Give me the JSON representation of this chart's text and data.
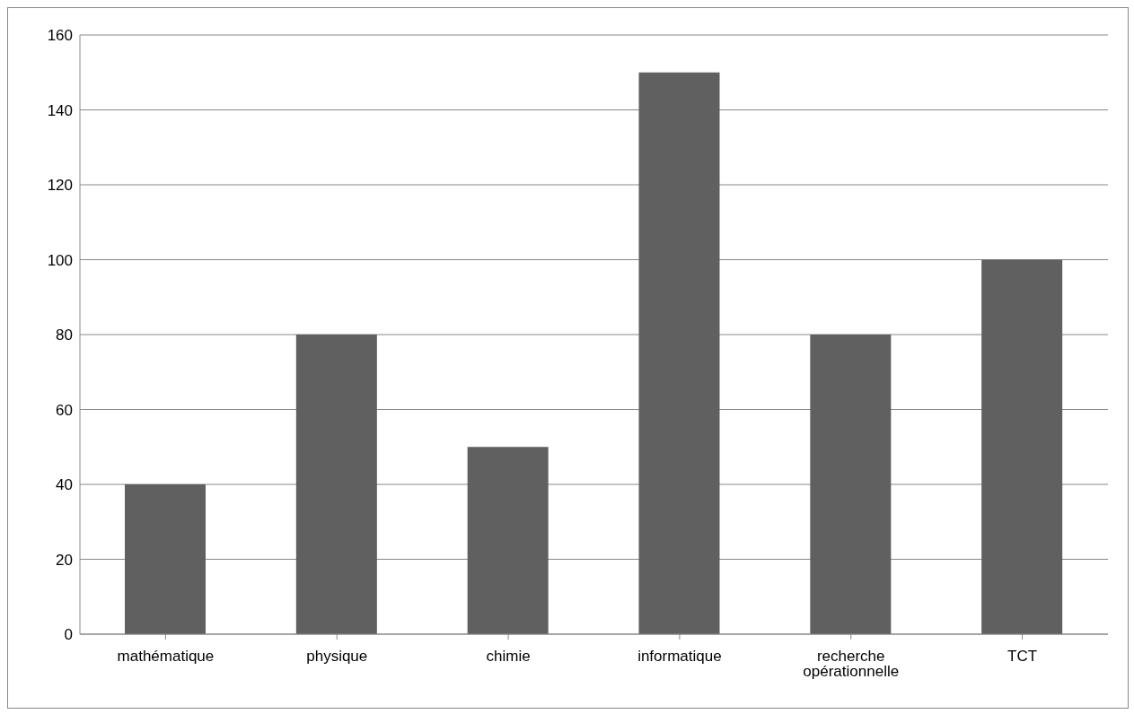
{
  "chart_data": {
    "type": "bar",
    "categories": [
      "mathématique",
      "physique",
      "chimie",
      "informatique",
      "recherche opérationnelle",
      "TCT"
    ],
    "values": [
      40,
      80,
      50,
      150,
      80,
      100
    ],
    "color": "#606060",
    "ylim": [
      0,
      160
    ],
    "yticks": [
      0,
      20,
      40,
      60,
      80,
      100,
      120,
      140,
      160
    ],
    "grid": "y"
  }
}
